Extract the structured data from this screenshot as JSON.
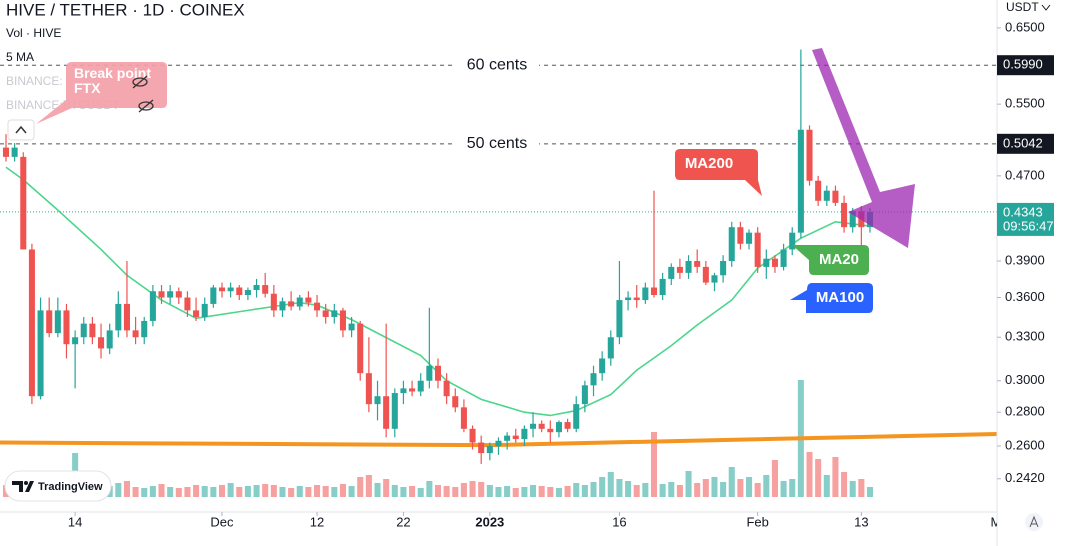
{
  "header": {
    "title": "HIVE / TETHER · 1D · COINEX",
    "legend": [
      "Vol · HIVE",
      "5 MA",
      "BINANCE:",
      "BINANCE:BTCUSDT"
    ],
    "currency": "USDT",
    "badge": "TradingView"
  },
  "chart_data": {
    "type": "candlestick",
    "log": true,
    "up_color": "#26a69a",
    "down_color": "#ef5350",
    "ylim": [
      0.225,
      0.691
    ],
    "yticks": [
      {
        "value": 0.65,
        "label": "0.6500"
      },
      {
        "value": 0.55,
        "label": "0.5500"
      },
      {
        "value": 0.47,
        "label": "0.4700"
      },
      {
        "value": 0.39,
        "label": "0.3900"
      },
      {
        "value": 0.36,
        "label": "0.3600"
      },
      {
        "value": 0.33,
        "label": "0.3300"
      },
      {
        "value": 0.3,
        "label": "0.3000"
      },
      {
        "value": 0.28,
        "label": "0.2800"
      },
      {
        "value": 0.26,
        "label": "0.2600"
      },
      {
        "value": 0.242,
        "label": "0.2420"
      }
    ],
    "xlim": [
      -0.694,
      114.7
    ],
    "xticks": [
      {
        "value": 8,
        "label": "14"
      },
      {
        "value": 25,
        "label": "Dec"
      },
      {
        "value": 36,
        "label": "12"
      },
      {
        "value": 46,
        "label": "22"
      },
      {
        "value": 56,
        "label": "2023"
      },
      {
        "value": 71,
        "label": "16"
      },
      {
        "value": 87,
        "label": "Feb"
      },
      {
        "value": 99,
        "label": "13"
      },
      {
        "value": 115,
        "label": "Ma"
      }
    ],
    "x": [
      0,
      1,
      2,
      3,
      4,
      5,
      6,
      7,
      8,
      9,
      10,
      11,
      12,
      13,
      14,
      15,
      16,
      17,
      18,
      19,
      20,
      21,
      22,
      23,
      24,
      25,
      26,
      27,
      28,
      29,
      30,
      31,
      32,
      33,
      34,
      35,
      36,
      37,
      38,
      39,
      40,
      41,
      42,
      43,
      44,
      45,
      46,
      47,
      48,
      49,
      50,
      51,
      52,
      53,
      54,
      55,
      56,
      57,
      58,
      59,
      60,
      61,
      62,
      63,
      64,
      65,
      66,
      67,
      68,
      69,
      70,
      71,
      72,
      73,
      74,
      75,
      76,
      77,
      78,
      79,
      80,
      81,
      82,
      83,
      84,
      85,
      86,
      87,
      88,
      89,
      90,
      91,
      92,
      93,
      94,
      95,
      96,
      97,
      98,
      99,
      100
    ],
    "values": [
      [
        0.5,
        0.515,
        0.485,
        0.49
      ],
      [
        0.49,
        0.505,
        0.485,
        0.5
      ],
      [
        0.49,
        0.495,
        0.4,
        0.4
      ],
      [
        0.4,
        0.405,
        0.285,
        0.29
      ],
      [
        0.29,
        0.36,
        0.288,
        0.35
      ],
      [
        0.35,
        0.36,
        0.33,
        0.333
      ],
      [
        0.333,
        0.36,
        0.33,
        0.35
      ],
      [
        0.35,
        0.355,
        0.315,
        0.325
      ],
      [
        0.325,
        0.335,
        0.295,
        0.33
      ],
      [
        0.33,
        0.345,
        0.325,
        0.34
      ],
      [
        0.34,
        0.345,
        0.325,
        0.33
      ],
      [
        0.33,
        0.34,
        0.315,
        0.322
      ],
      [
        0.322,
        0.34,
        0.318,
        0.335
      ],
      [
        0.335,
        0.365,
        0.33,
        0.355
      ],
      [
        0.355,
        0.39,
        0.33,
        0.335
      ],
      [
        0.335,
        0.345,
        0.325,
        0.33
      ],
      [
        0.33,
        0.345,
        0.325,
        0.342
      ],
      [
        0.342,
        0.37,
        0.338,
        0.365
      ],
      [
        0.365,
        0.37,
        0.355,
        0.36
      ],
      [
        0.36,
        0.37,
        0.355,
        0.365
      ],
      [
        0.365,
        0.368,
        0.355,
        0.36
      ],
      [
        0.36,
        0.365,
        0.345,
        0.35
      ],
      [
        0.35,
        0.36,
        0.342,
        0.345
      ],
      [
        0.345,
        0.36,
        0.342,
        0.355
      ],
      [
        0.355,
        0.37,
        0.352,
        0.368
      ],
      [
        0.368,
        0.372,
        0.36,
        0.365
      ],
      [
        0.365,
        0.372,
        0.36,
        0.368
      ],
      [
        0.368,
        0.37,
        0.358,
        0.362
      ],
      [
        0.362,
        0.368,
        0.358,
        0.366
      ],
      [
        0.366,
        0.375,
        0.36,
        0.37
      ],
      [
        0.37,
        0.38,
        0.36,
        0.363
      ],
      [
        0.363,
        0.37,
        0.345,
        0.35
      ],
      [
        0.35,
        0.36,
        0.345,
        0.357
      ],
      [
        0.357,
        0.365,
        0.35,
        0.353
      ],
      [
        0.353,
        0.362,
        0.35,
        0.36
      ],
      [
        0.36,
        0.365,
        0.353,
        0.356
      ],
      [
        0.356,
        0.362,
        0.345,
        0.35
      ],
      [
        0.35,
        0.355,
        0.34,
        0.345
      ],
      [
        0.345,
        0.355,
        0.34,
        0.35
      ],
      [
        0.35,
        0.352,
        0.33,
        0.335
      ],
      [
        0.335,
        0.345,
        0.33,
        0.34
      ],
      [
        0.34,
        0.342,
        0.3,
        0.305
      ],
      [
        0.305,
        0.33,
        0.28,
        0.285
      ],
      [
        0.285,
        0.3,
        0.275,
        0.29
      ],
      [
        0.29,
        0.34,
        0.265,
        0.27
      ],
      [
        0.27,
        0.295,
        0.265,
        0.292
      ],
      [
        0.292,
        0.3,
        0.285,
        0.295
      ],
      [
        0.295,
        0.3,
        0.29,
        0.293
      ],
      [
        0.293,
        0.305,
        0.29,
        0.3
      ],
      [
        0.3,
        0.352,
        0.295,
        0.31
      ],
      [
        0.31,
        0.315,
        0.295,
        0.3
      ],
      [
        0.3,
        0.305,
        0.285,
        0.29
      ],
      [
        0.29,
        0.295,
        0.28,
        0.283
      ],
      [
        0.283,
        0.288,
        0.268,
        0.27
      ],
      [
        0.27,
        0.272,
        0.258,
        0.262
      ],
      [
        0.262,
        0.266,
        0.25,
        0.256
      ],
      [
        0.256,
        0.262,
        0.252,
        0.26
      ],
      [
        0.26,
        0.265,
        0.255,
        0.263
      ],
      [
        0.263,
        0.268,
        0.258,
        0.266
      ],
      [
        0.266,
        0.27,
        0.262,
        0.264
      ],
      [
        0.264,
        0.272,
        0.26,
        0.27
      ],
      [
        0.27,
        0.28,
        0.265,
        0.273
      ],
      [
        0.273,
        0.275,
        0.268,
        0.27
      ],
      [
        0.27,
        0.275,
        0.262,
        0.268
      ],
      [
        0.268,
        0.275,
        0.265,
        0.274
      ],
      [
        0.274,
        0.276,
        0.268,
        0.27
      ],
      [
        0.27,
        0.29,
        0.268,
        0.285
      ],
      [
        0.285,
        0.3,
        0.28,
        0.297
      ],
      [
        0.297,
        0.31,
        0.29,
        0.305
      ],
      [
        0.305,
        0.32,
        0.3,
        0.315
      ],
      [
        0.315,
        0.335,
        0.31,
        0.33
      ],
      [
        0.33,
        0.39,
        0.325,
        0.358
      ],
      [
        0.358,
        0.365,
        0.35,
        0.36
      ],
      [
        0.36,
        0.37,
        0.352,
        0.358
      ],
      [
        0.358,
        0.372,
        0.355,
        0.368
      ],
      [
        0.368,
        0.455,
        0.36,
        0.362
      ],
      [
        0.362,
        0.38,
        0.358,
        0.375
      ],
      [
        0.375,
        0.388,
        0.37,
        0.385
      ],
      [
        0.385,
        0.392,
        0.375,
        0.38
      ],
      [
        0.38,
        0.395,
        0.375,
        0.39
      ],
      [
        0.39,
        0.4,
        0.38,
        0.385
      ],
      [
        0.385,
        0.39,
        0.37,
        0.372
      ],
      [
        0.372,
        0.38,
        0.365,
        0.378
      ],
      [
        0.378,
        0.395,
        0.372,
        0.39
      ],
      [
        0.39,
        0.425,
        0.385,
        0.42
      ],
      [
        0.42,
        0.425,
        0.4,
        0.405
      ],
      [
        0.405,
        0.418,
        0.4,
        0.415
      ],
      [
        0.415,
        0.42,
        0.38,
        0.385
      ],
      [
        0.385,
        0.4,
        0.375,
        0.392
      ],
      [
        0.392,
        0.395,
        0.38,
        0.385
      ],
      [
        0.385,
        0.405,
        0.382,
        0.4
      ],
      [
        0.4,
        0.42,
        0.395,
        0.415
      ],
      [
        0.415,
        0.62,
        0.41,
        0.52
      ],
      [
        0.52,
        0.525,
        0.46,
        0.465
      ],
      [
        0.465,
        0.47,
        0.44,
        0.445
      ],
      [
        0.445,
        0.46,
        0.44,
        0.455
      ],
      [
        0.455,
        0.46,
        0.44,
        0.443
      ],
      [
        0.443,
        0.45,
        0.415,
        0.42
      ],
      [
        0.42,
        0.438,
        0.415,
        0.435
      ],
      [
        0.435,
        0.44,
        0.395,
        0.42
      ],
      [
        0.42,
        0.438,
        0.415,
        0.4343
      ]
    ],
    "volume": [
      12,
      10,
      18,
      26,
      16,
      12,
      10,
      14,
      44,
      12,
      10,
      12,
      11,
      14,
      16,
      10,
      9,
      11,
      13,
      10,
      9,
      10,
      12,
      11,
      10,
      12,
      14,
      10,
      11,
      12,
      13,
      12,
      10,
      9,
      11,
      10,
      12,
      11,
      10,
      13,
      11,
      20,
      22,
      14,
      18,
      12,
      10,
      11,
      9,
      16,
      12,
      11,
      10,
      14,
      16,
      15,
      12,
      10,
      11,
      9,
      10,
      12,
      11,
      10,
      9,
      11,
      14,
      12,
      15,
      20,
      25,
      18,
      16,
      12,
      14,
      65,
      13,
      15,
      12,
      26,
      14,
      18,
      20,
      15,
      30,
      18,
      20,
      14,
      22,
      37,
      16,
      18,
      117,
      45,
      38,
      22,
      40,
      25,
      16,
      18,
      10
    ],
    "lines": [
      {
        "color": "#4cd68c",
        "x": [
          0,
          2,
          6,
          11,
          14,
          18,
          22,
          28,
          34,
          36,
          40,
          43,
          48,
          51,
          55,
          60,
          63,
          66,
          70,
          73,
          77,
          80,
          84,
          87,
          92,
          96,
          100
        ],
        "values": [
          0.479,
          0.466,
          0.436,
          0.4,
          0.378,
          0.358,
          0.344,
          0.35,
          0.356,
          0.354,
          0.343,
          0.333,
          0.317,
          0.3,
          0.288,
          0.28,
          0.278,
          0.281,
          0.291,
          0.307,
          0.324,
          0.339,
          0.358,
          0.384,
          0.41,
          0.425,
          0.421
        ]
      },
      {
        "color": "#f5951f",
        "x": [
          -1,
          56,
          115
        ],
        "values": [
          0.262,
          0.2605,
          0.267
        ]
      }
    ],
    "levels": [
      {
        "value": 0.599,
        "label": "60 cents",
        "price_label": "0.5990"
      },
      {
        "value": 0.5042,
        "label": "50 cents",
        "price_label": "0.5042"
      }
    ],
    "last_price": {
      "value": 0.4343,
      "label": "0.4343",
      "countdown": "09:56:47"
    },
    "annotations": [
      {
        "text": "Break point FTX",
        "color": "#f4a0a8"
      },
      {
        "text": "MA200",
        "color": "#f0544f"
      },
      {
        "text": "MA20",
        "color": "#4caf50"
      },
      {
        "text": "MA100",
        "color": "#2962ff"
      }
    ]
  }
}
